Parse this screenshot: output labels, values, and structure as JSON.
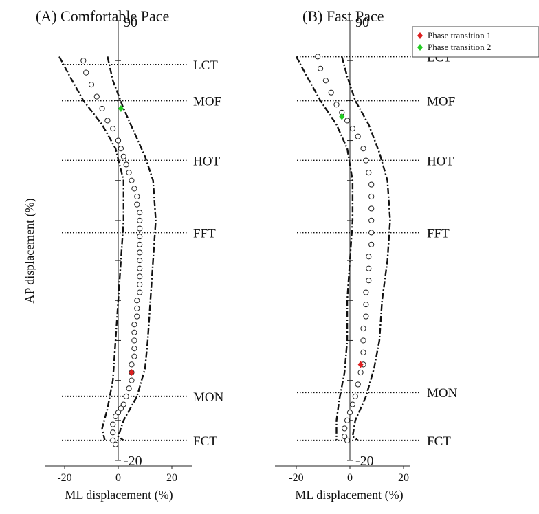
{
  "chart_data": [
    {
      "type": "scatter",
      "title": "(A) Comfortable Pace",
      "xlabel": "ML displacement (%)",
      "ylabel": "AP displacement (%)",
      "xlim": [
        -28,
        28
      ],
      "ylim": [
        -20,
        90
      ],
      "xticks": [
        "-20",
        "0",
        "20"
      ],
      "ylim_labels": {
        "top": "90",
        "bottom": "-20"
      },
      "events": [
        {
          "label": "LCT",
          "y": 79
        },
        {
          "label": "MOF",
          "y": 70
        },
        {
          "label": "HOT",
          "y": 55
        },
        {
          "label": "FFT",
          "y": 37
        },
        {
          "label": "MON",
          "y": -4
        },
        {
          "label": "FCT",
          "y": -15
        }
      ],
      "series": [
        {
          "points": [
            [
              -13,
              80
            ],
            [
              -12,
              77
            ],
            [
              -10,
              74
            ],
            [
              -8,
              71
            ],
            [
              -6,
              68
            ],
            [
              -4,
              65
            ],
            [
              -2,
              63
            ],
            [
              0,
              60
            ],
            [
              1,
              58
            ],
            [
              2,
              56
            ],
            [
              3,
              54
            ],
            [
              4,
              52
            ],
            [
              5,
              50
            ],
            [
              6,
              48
            ],
            [
              7,
              46
            ],
            [
              7,
              44
            ],
            [
              8,
              42
            ],
            [
              8,
              40
            ],
            [
              8,
              38
            ],
            [
              8,
              36
            ],
            [
              8,
              34
            ],
            [
              8,
              32
            ],
            [
              8,
              30
            ],
            [
              8,
              28
            ],
            [
              8,
              26
            ],
            [
              8,
              24
            ],
            [
              8,
              22
            ],
            [
              7,
              20
            ],
            [
              7,
              18
            ],
            [
              7,
              16
            ],
            [
              6,
              14
            ],
            [
              6,
              12
            ],
            [
              6,
              10
            ],
            [
              6,
              8
            ],
            [
              6,
              6
            ],
            [
              5,
              4
            ],
            [
              5,
              2
            ],
            [
              5,
              0
            ],
            [
              4,
              -2
            ],
            [
              3,
              -4
            ],
            [
              2,
              -6
            ],
            [
              1,
              -7
            ],
            [
              0,
              -8
            ],
            [
              -1,
              -9
            ],
            [
              -2,
              -11
            ],
            [
              -2,
              -13
            ],
            [
              -2,
              -15
            ],
            [
              -1,
              -16
            ]
          ]
        },
        {
          "name": "Phase transition 1",
          "points": [
            [
              5,
              2
            ]
          ]
        },
        {
          "name": "Phase transition 2",
          "points": [
            [
              1,
              68
            ]
          ]
        }
      ],
      "bounds": {
        "upper": [
          [
            -22,
            81
          ],
          [
            -18,
            76
          ],
          [
            -13,
            70
          ],
          [
            -6,
            64
          ],
          [
            -1,
            58
          ],
          [
            2,
            50
          ],
          [
            2,
            40
          ],
          [
            1,
            30
          ],
          [
            0,
            20
          ],
          [
            -1,
            10
          ],
          [
            -2,
            0
          ],
          [
            -4,
            -7
          ],
          [
            -6,
            -12
          ],
          [
            -5,
            -15
          ]
        ],
        "lower": [
          [
            -4,
            81
          ],
          [
            -2,
            75
          ],
          [
            2,
            68
          ],
          [
            6,
            62
          ],
          [
            10,
            56
          ],
          [
            13,
            50
          ],
          [
            14,
            40
          ],
          [
            13,
            30
          ],
          [
            12,
            20
          ],
          [
            11,
            10
          ],
          [
            10,
            3
          ],
          [
            7,
            -4
          ],
          [
            2,
            -10
          ],
          [
            0,
            -14
          ],
          [
            2,
            -15
          ]
        ]
      }
    },
    {
      "type": "scatter",
      "title": "(B) Fast Pace",
      "xlabel": "ML displacement (%)",
      "ylabel": "",
      "xlim": [
        -28,
        28
      ],
      "ylim": [
        -20,
        90
      ],
      "xticks": [
        "-20",
        "0",
        "20"
      ],
      "ylim_labels": {
        "top": "90",
        "bottom": "-20"
      },
      "events": [
        {
          "label": "LCT",
          "y": 81
        },
        {
          "label": "MOF",
          "y": 70
        },
        {
          "label": "HOT",
          "y": 55
        },
        {
          "label": "FFT",
          "y": 37
        },
        {
          "label": "MON",
          "y": -3
        },
        {
          "label": "FCT",
          "y": -15
        }
      ],
      "series": [
        {
          "points": [
            [
              -12,
              81
            ],
            [
              -11,
              78
            ],
            [
              -9,
              75
            ],
            [
              -7,
              72
            ],
            [
              -5,
              69
            ],
            [
              -3,
              67
            ],
            [
              -1,
              65
            ],
            [
              1,
              63
            ],
            [
              3,
              61
            ],
            [
              5,
              58
            ],
            [
              6,
              55
            ],
            [
              7,
              52
            ],
            [
              8,
              49
            ],
            [
              8,
              46
            ],
            [
              8,
              43
            ],
            [
              8,
              40
            ],
            [
              8,
              37
            ],
            [
              8,
              34
            ],
            [
              7,
              31
            ],
            [
              7,
              28
            ],
            [
              7,
              25
            ],
            [
              6,
              22
            ],
            [
              6,
              19
            ],
            [
              6,
              16
            ],
            [
              5,
              13
            ],
            [
              5,
              10
            ],
            [
              5,
              7
            ],
            [
              5,
              4
            ],
            [
              4,
              2
            ],
            [
              3,
              -1
            ],
            [
              2,
              -4
            ],
            [
              1,
              -6
            ],
            [
              0,
              -8
            ],
            [
              -1,
              -10
            ],
            [
              -2,
              -12
            ],
            [
              -2,
              -14
            ],
            [
              -1,
              -15
            ]
          ]
        },
        {
          "name": "Phase transition 1",
          "points": [
            [
              4,
              4
            ]
          ]
        },
        {
          "name": "Phase transition 2",
          "points": [
            [
              -3,
              66
            ]
          ]
        }
      ],
      "bounds": {
        "upper": [
          [
            -20,
            81
          ],
          [
            -16,
            76
          ],
          [
            -11,
            70
          ],
          [
            -5,
            64
          ],
          [
            -1,
            58
          ],
          [
            1,
            50
          ],
          [
            1,
            40
          ],
          [
            0,
            30
          ],
          [
            -1,
            20
          ],
          [
            -1,
            10
          ],
          [
            -2,
            2
          ],
          [
            -4,
            -5
          ],
          [
            -5,
            -10
          ],
          [
            -5,
            -15
          ]
        ],
        "lower": [
          [
            -3,
            81
          ],
          [
            -1,
            76
          ],
          [
            2,
            70
          ],
          [
            7,
            64
          ],
          [
            11,
            57
          ],
          [
            14,
            50
          ],
          [
            15,
            40
          ],
          [
            14,
            30
          ],
          [
            12,
            20
          ],
          [
            11,
            10
          ],
          [
            9,
            3
          ],
          [
            6,
            -4
          ],
          [
            2,
            -10
          ],
          [
            1,
            -14
          ],
          [
            3,
            -15
          ]
        ]
      }
    }
  ],
  "legend": {
    "items": [
      {
        "label": "Phase transition 1",
        "color": "#dd1f1f"
      },
      {
        "label": "Phase transition 2",
        "color": "#22cc22"
      }
    ]
  }
}
